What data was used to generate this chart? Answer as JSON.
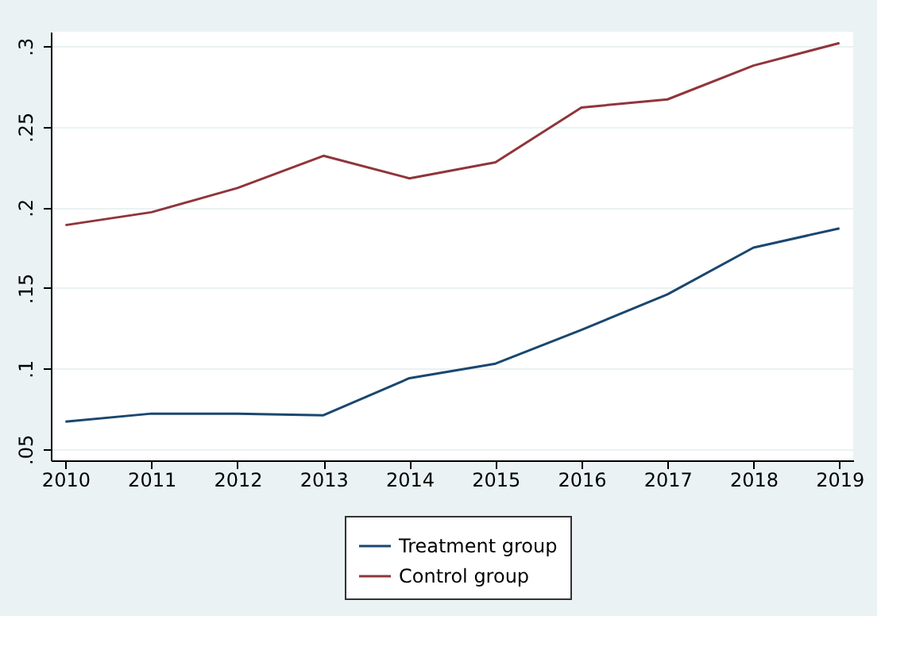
{
  "chart_data": {
    "type": "line",
    "x": [
      2010,
      2011,
      2012,
      2013,
      2014,
      2015,
      2016,
      2017,
      2018,
      2019
    ],
    "series": [
      {
        "name": "Treatment group",
        "color": "#1a476f",
        "values": [
          0.067,
          0.072,
          0.072,
          0.071,
          0.094,
          0.103,
          0.124,
          0.146,
          0.175,
          0.187
        ]
      },
      {
        "name": "Control group",
        "color": "#90353b",
        "values": [
          0.189,
          0.197,
          0.212,
          0.232,
          0.218,
          0.228,
          0.262,
          0.267,
          0.288,
          0.302
        ]
      }
    ],
    "xlim": [
      2009.83,
      2019.16
    ],
    "xticks": [
      2010,
      2011,
      2012,
      2013,
      2014,
      2015,
      2016,
      2017,
      2018,
      2019
    ],
    "ylim": [
      0.043,
      0.309
    ],
    "yticks": [
      {
        "value": 0.05,
        "label": ".05"
      },
      {
        "value": 0.1,
        "label": ".1"
      },
      {
        "value": 0.15,
        "label": ".15"
      },
      {
        "value": 0.2,
        "label": ".2"
      },
      {
        "value": 0.25,
        "label": ".25"
      },
      {
        "value": 0.3,
        "label": ".3"
      }
    ],
    "grid": "y",
    "legend": "bottom",
    "marker": "none",
    "line_style": "solid"
  }
}
